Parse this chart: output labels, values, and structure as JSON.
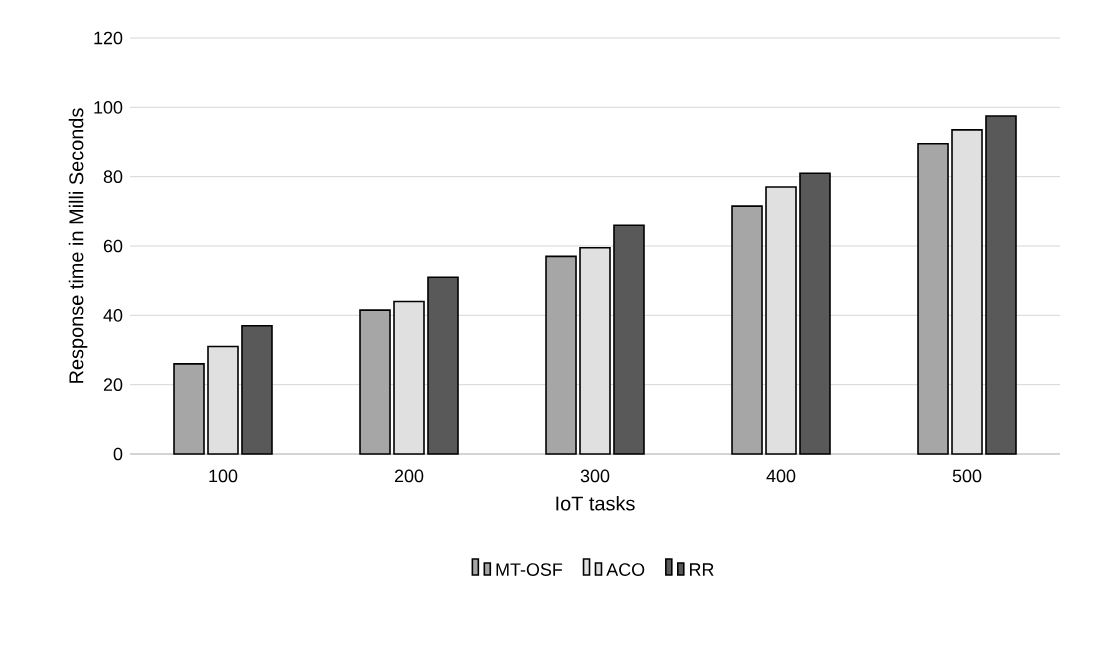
{
  "chart_data": {
    "type": "bar",
    "xlabel": "IoT tasks",
    "ylabel": "Response time in Milli Seconds",
    "categories": [
      "100",
      "200",
      "300",
      "400",
      "500"
    ],
    "series": [
      {
        "name": "MT-OSF",
        "color": "#a6a6a6",
        "values": [
          26,
          41.5,
          57,
          71.5,
          89.5
        ]
      },
      {
        "name": "ACO",
        "color": "#e0e0e0",
        "values": [
          31,
          44,
          59.5,
          77,
          93.5
        ]
      },
      {
        "name": "RR",
        "color": "#595959",
        "values": [
          37,
          51,
          66,
          81,
          97.5
        ]
      }
    ],
    "ylim": [
      0,
      120
    ],
    "yticks": [
      0,
      20,
      40,
      60,
      80,
      100,
      120
    ],
    "grid": "y",
    "legend": "bottom"
  }
}
